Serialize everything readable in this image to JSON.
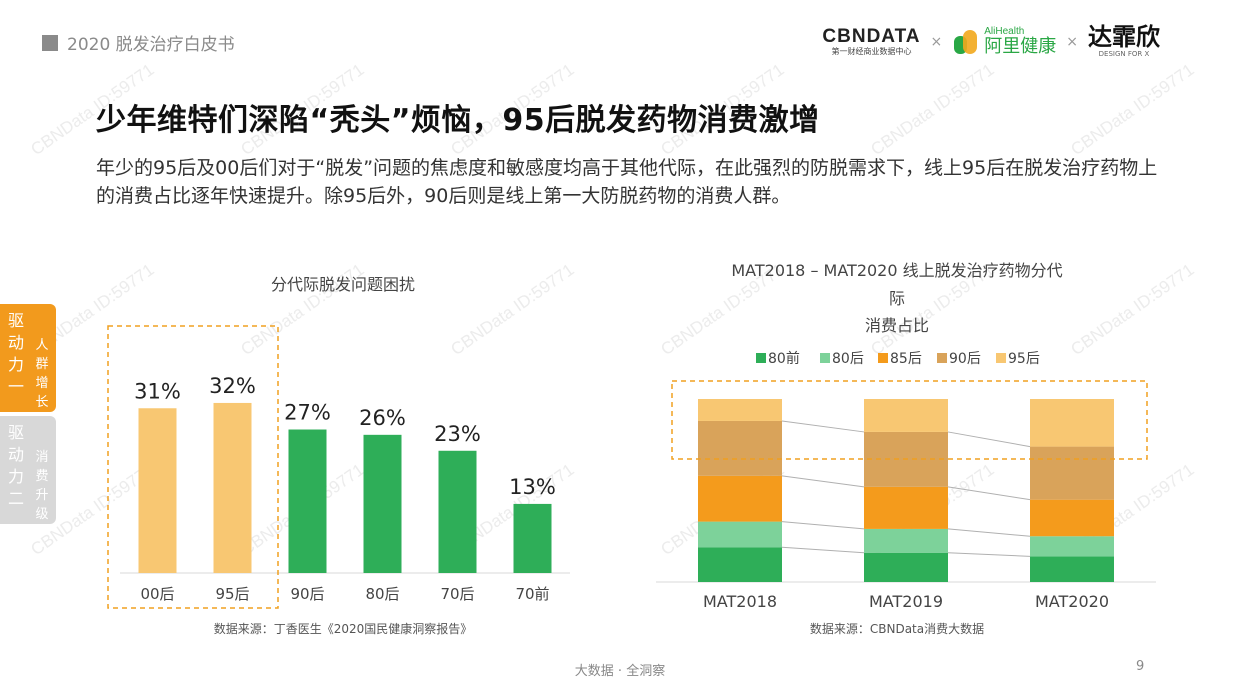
{
  "header": {
    "report_title": "2020 脱发治疗白皮书"
  },
  "logos": {
    "cbndata_name": "CBNDATA",
    "cbndata_sub": "第一财经商业数据中心",
    "times": "×",
    "alihealth_en": "AliHealth",
    "alihealth_cn": "阿里健康",
    "daxx_name": "达霏欣",
    "daxx_sub": "DESIGN FOR X"
  },
  "slide": {
    "title": "少年维特们深陷“秃头”烦恼，95后脱发药物消费激增",
    "description": "年少的95后及00后们对于“脱发”问题的焦虑度和敏感度均高于其他代际，在此强烈的防脱需求下，线上95后在脱发治疗药物上的消费占比逐年快速提升。除95后外，90后则是线上第一大防脱药物的消费人群。"
  },
  "side_tabs": [
    {
      "main": "驱动力一",
      "sub": "人群增长"
    },
    {
      "main": "驱动力二",
      "sub": "消费升级"
    }
  ],
  "watermark_text": "CBNData ID:59771",
  "charts": {
    "left_source": "数据来源：丁香医生《2020国民健康洞察报告》",
    "right_source": "数据来源：CBNData消费大数据"
  },
  "colors": {
    "orange_light": "#f8c772",
    "green_dark": "#2eae58",
    "green_light": "#7dd29a",
    "orange": "#f49b1c",
    "tan": "#d9a35a",
    "yellow": "#f8c772",
    "highlight_border": "#f0a020"
  },
  "chart_data": [
    {
      "type": "bar",
      "title": "分代际脱发问题困扰",
      "categories": [
        "00后",
        "95后",
        "90后",
        "80后",
        "70后",
        "70前"
      ],
      "values": [
        31,
        32,
        27,
        26,
        23,
        13
      ],
      "data_labels": [
        "31%",
        "32%",
        "27%",
        "26%",
        "23%",
        "13%"
      ],
      "unit": "%",
      "ylim": [
        0,
        35
      ],
      "highlighted_categories": [
        "00后",
        "95后"
      ],
      "grid": false
    },
    {
      "type": "bar",
      "stacked": true,
      "normalized": true,
      "title_lines": [
        "MAT2018 – MAT2020 线上脱发治疗药物分代",
        "际",
        "消费占比"
      ],
      "categories": [
        "MAT2018",
        "MAT2019",
        "MAT2020"
      ],
      "legend_placement": "top",
      "series": [
        {
          "name": "80前",
          "values": [
            0.19,
            0.16,
            0.14
          ]
        },
        {
          "name": "80后",
          "values": [
            0.14,
            0.13,
            0.11
          ]
        },
        {
          "name": "85后",
          "values": [
            0.25,
            0.23,
            0.2
          ]
        },
        {
          "name": "90后",
          "values": [
            0.3,
            0.3,
            0.29
          ]
        },
        {
          "name": "95后",
          "values": [
            0.12,
            0.18,
            0.26
          ]
        }
      ],
      "ylim": [
        0,
        1
      ],
      "grid": false
    }
  ],
  "footer": {
    "center_text": "大数据 · 全洞察",
    "page_number": "9"
  }
}
